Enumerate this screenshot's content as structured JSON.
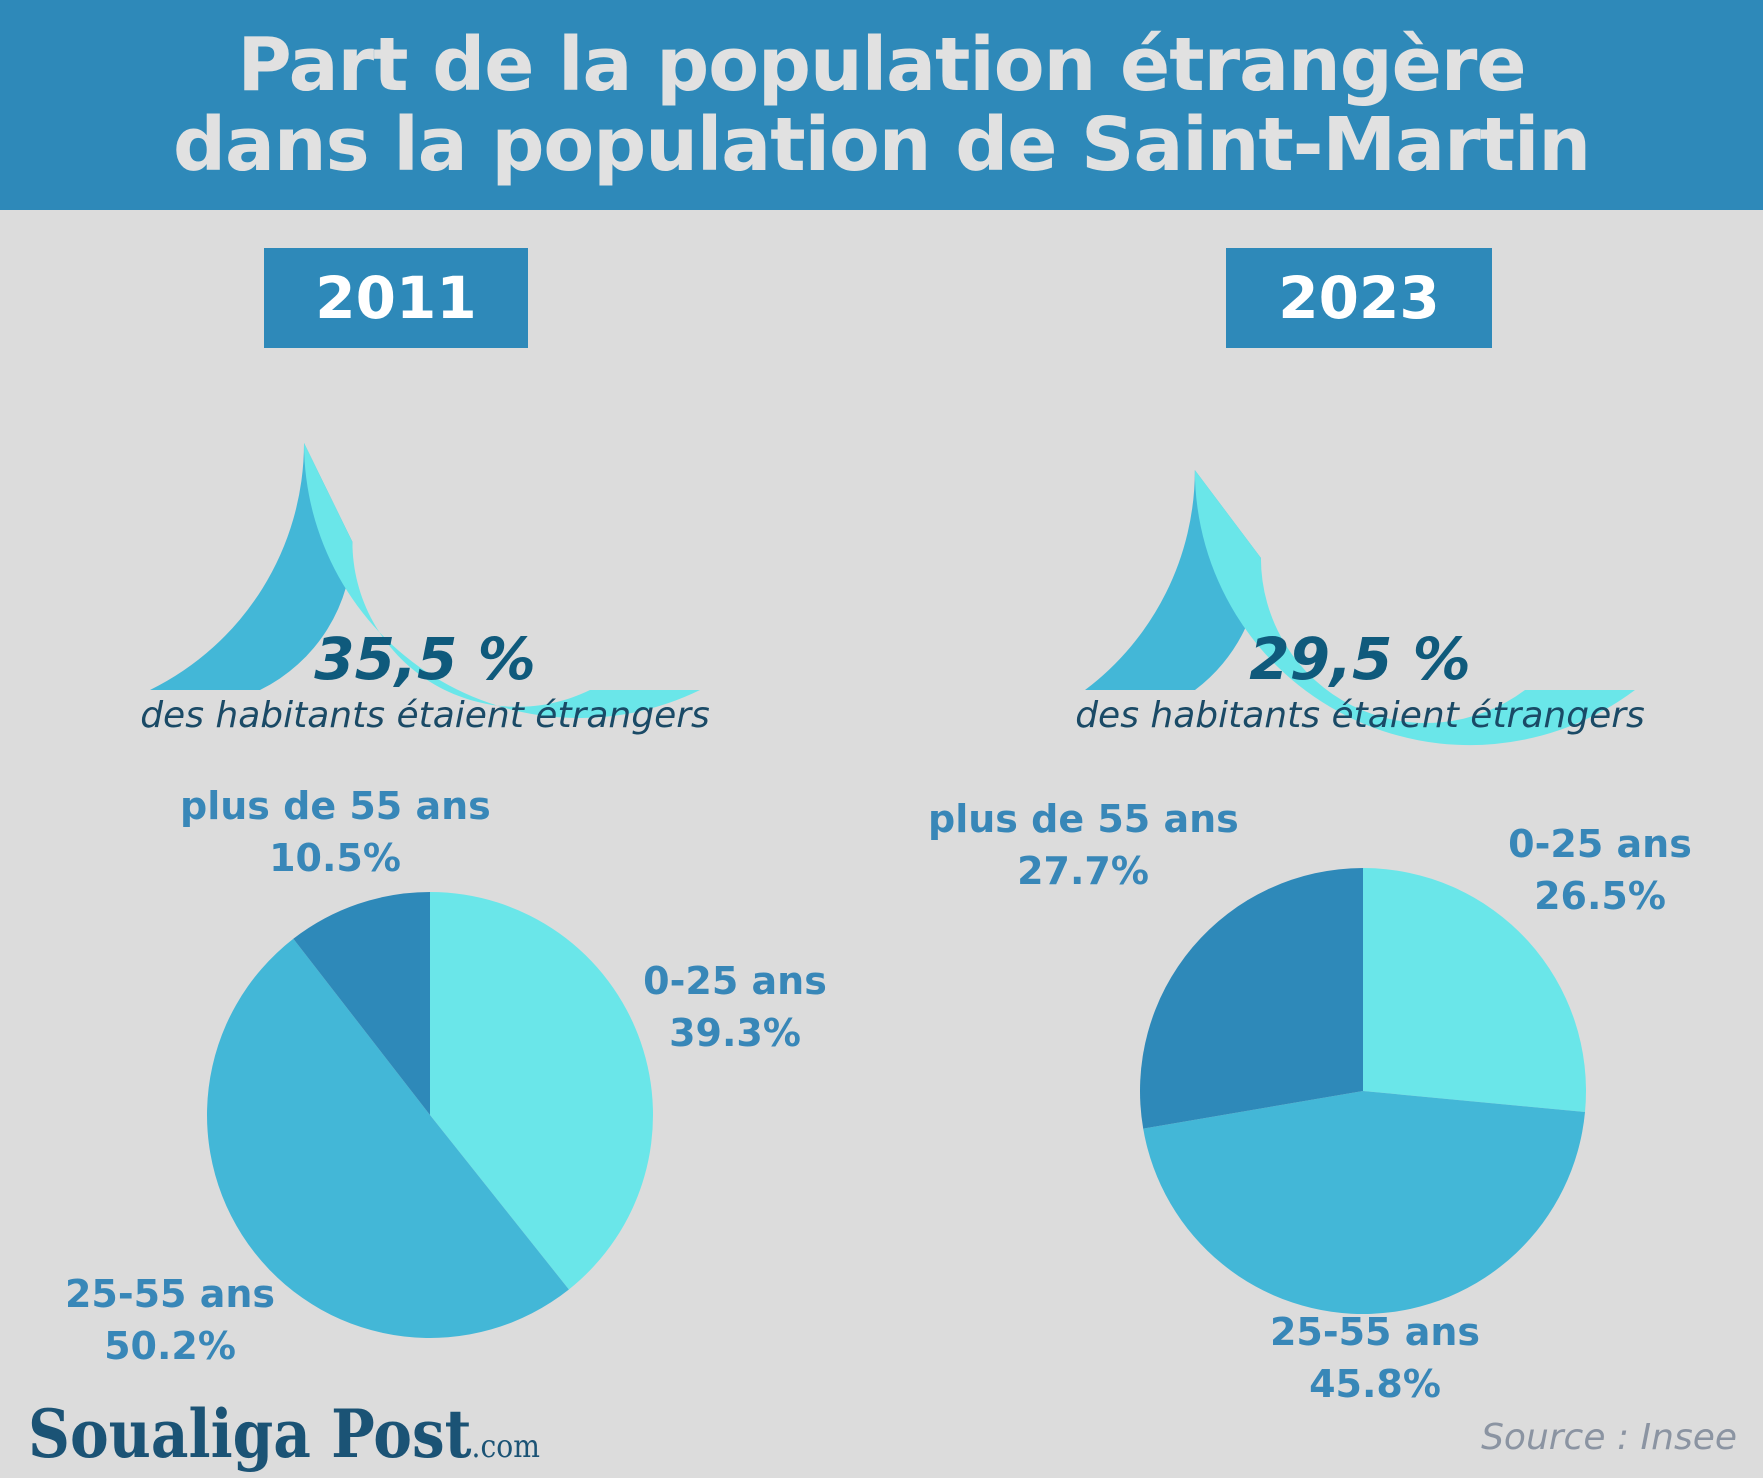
{
  "title_line1": "Part de la population étrangère",
  "title_line2": "dans la population de Saint-Martin",
  "colors": {
    "header_bg": "#2e89b9",
    "light": "#6ae6e9",
    "mid": "#43b7d7",
    "dark": "#2e89b9",
    "label": "#3887b8",
    "gauge_value": "#0f5a7c"
  },
  "panels": [
    {
      "year": "2011",
      "gauge_value": "35,5 %",
      "gauge_caption": "des habitants étaient étrangers",
      "segments": [
        {
          "name": "0-25 ans",
          "pct_label": "39.3%"
        },
        {
          "name": "25-55 ans",
          "pct_label": "50.2%"
        },
        {
          "name": "plus de 55 ans",
          "pct_label": "10.5%"
        }
      ]
    },
    {
      "year": "2023",
      "gauge_value": "29,5 %",
      "gauge_caption": "des habitants étaient étrangers",
      "segments": [
        {
          "name": "0-25 ans",
          "pct_label": "26.5%"
        },
        {
          "name": "25-55 ans",
          "pct_label": "45.8%"
        },
        {
          "name": "plus de 55 ans",
          "pct_label": "27.7%"
        }
      ]
    }
  ],
  "chart_data": [
    {
      "type": "gauge",
      "title": "2011",
      "value": 35.5,
      "range": [
        0,
        100
      ],
      "label": "35,5 %",
      "caption": "des habitants étaient étrangers"
    },
    {
      "type": "pie",
      "title": "2011",
      "categories": [
        "0-25 ans",
        "25-55 ans",
        "plus de 55 ans"
      ],
      "values": [
        39.3,
        50.2,
        10.5
      ],
      "colors": [
        "#6ae6e9",
        "#43b7d7",
        "#2e89b9"
      ]
    },
    {
      "type": "gauge",
      "title": "2023",
      "value": 29.5,
      "range": [
        0,
        100
      ],
      "label": "29,5 %",
      "caption": "des habitants étaient étrangers"
    },
    {
      "type": "pie",
      "title": "2023",
      "categories": [
        "0-25 ans",
        "25-55 ans",
        "plus de 55 ans"
      ],
      "values": [
        26.5,
        45.8,
        27.7
      ],
      "colors": [
        "#6ae6e9",
        "#43b7d7",
        "#2e89b9"
      ]
    }
  ],
  "logo_text": "Soualiga Post",
  "logo_suffix": ".com",
  "source": "Source : Insee"
}
